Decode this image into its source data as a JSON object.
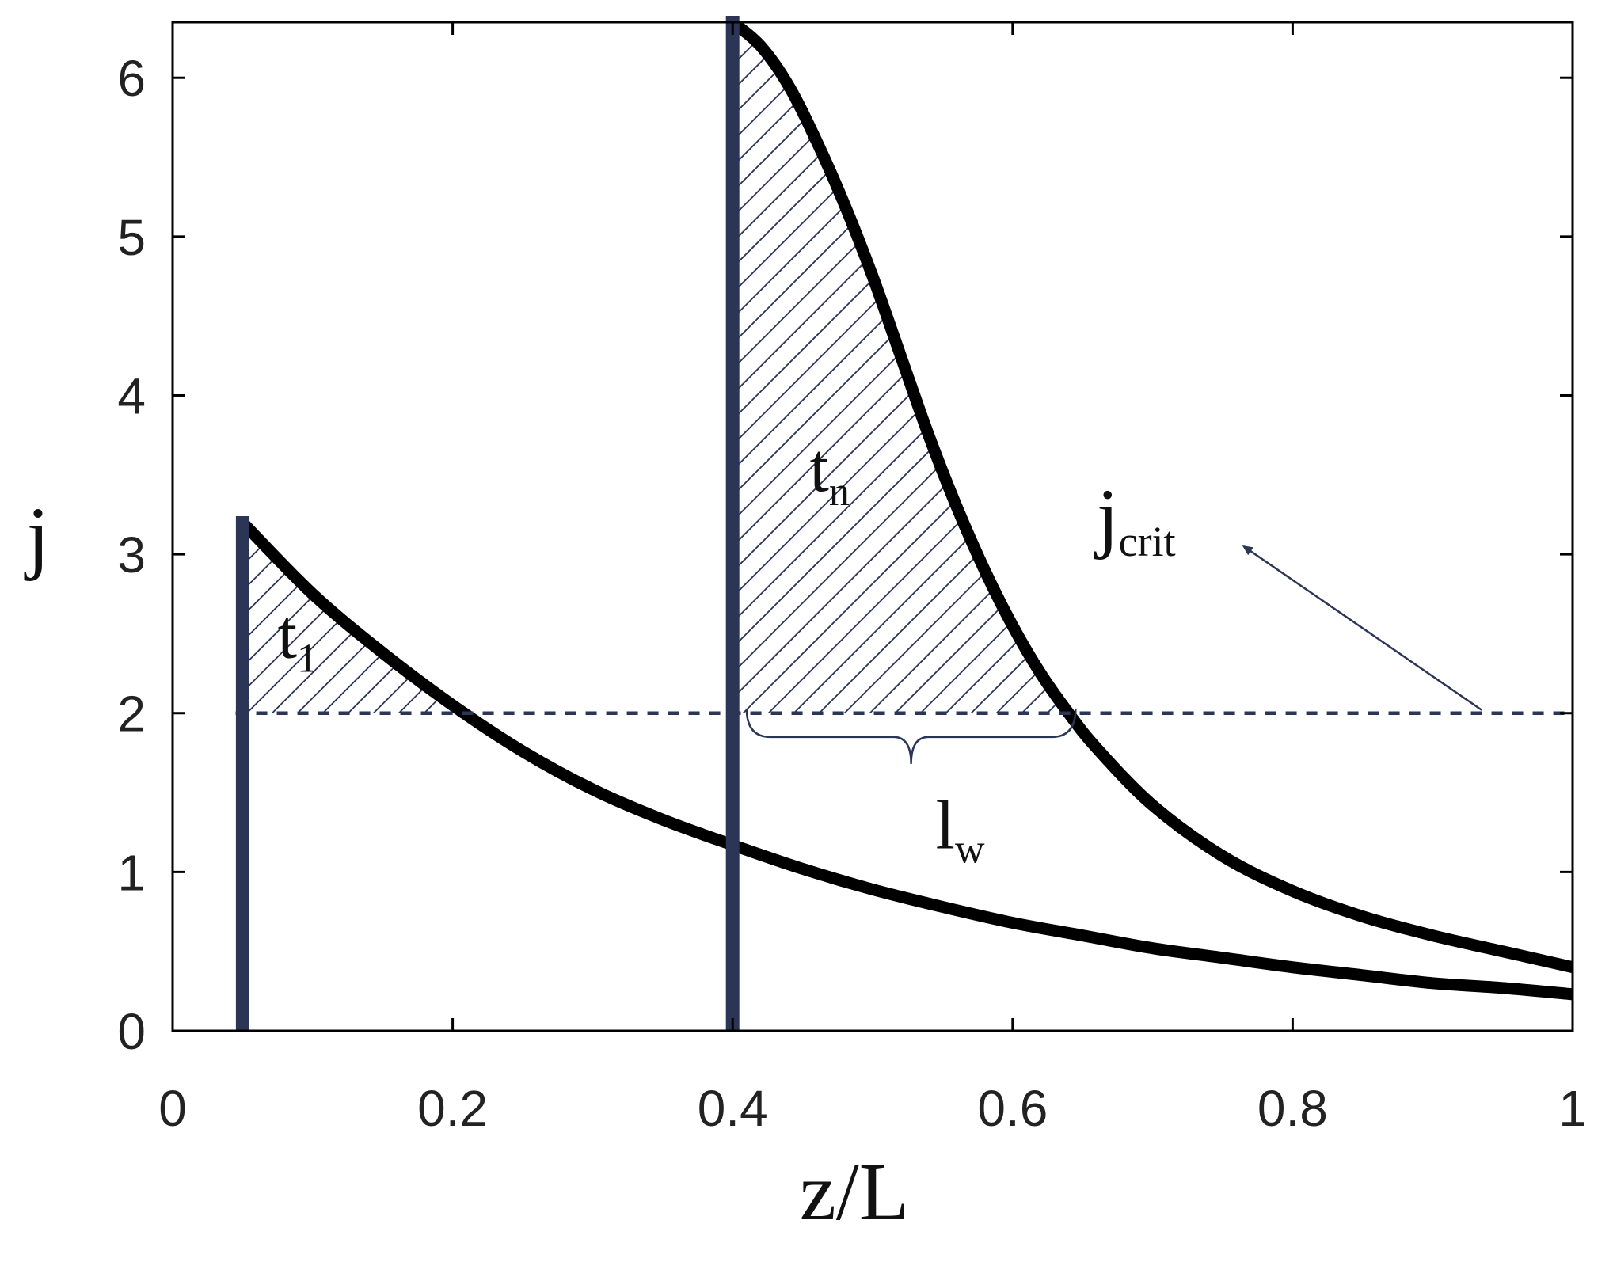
{
  "chart_data": {
    "type": "line",
    "xlabel": "z/L",
    "ylabel": "j",
    "xlim": [
      0,
      1
    ],
    "ylim": [
      0,
      6.35
    ],
    "x_ticks": [
      "0",
      "0.2",
      "0.4",
      "0.6",
      "0.8",
      "1"
    ],
    "y_ticks": [
      "0",
      "1",
      "2",
      "3",
      "4",
      "5",
      "6"
    ],
    "grid": false,
    "colors": {
      "curve": "#000000",
      "bar": "#2b3556",
      "threshold": "#2b3556",
      "hatch": "#2b3556",
      "box": "#000000"
    },
    "series": [
      {
        "x": [
          0.05,
          0.1,
          0.15,
          0.2,
          0.25,
          0.3,
          0.35,
          0.4,
          0.45,
          0.5,
          0.55,
          0.6,
          0.65,
          0.7,
          0.75,
          0.8,
          0.85,
          0.9,
          0.95,
          1.0
        ],
        "y": [
          3.2,
          2.75,
          2.38,
          2.05,
          1.76,
          1.52,
          1.33,
          1.17,
          1.02,
          0.89,
          0.78,
          0.68,
          0.6,
          0.52,
          0.46,
          0.4,
          0.35,
          0.3,
          0.27,
          0.23
        ]
      },
      {
        "x": [
          0.4,
          0.42,
          0.44,
          0.46,
          0.48,
          0.5,
          0.52,
          0.54,
          0.56,
          0.58,
          0.6,
          0.62,
          0.64,
          0.66,
          0.7,
          0.75,
          0.8,
          0.85,
          0.9,
          0.95,
          1.0
        ],
        "y": [
          6.35,
          6.2,
          5.95,
          5.6,
          5.2,
          4.75,
          4.25,
          3.75,
          3.3,
          2.9,
          2.55,
          2.25,
          2.0,
          1.78,
          1.42,
          1.1,
          0.88,
          0.72,
          0.6,
          0.5,
          0.4
        ]
      }
    ],
    "vertical_bars": [
      {
        "x": 0.05,
        "y_top": 3.2
      },
      {
        "x": 0.4,
        "y_top": 6.35
      }
    ],
    "threshold": {
      "y": 2.0,
      "label_main": "j",
      "label_sub": "crit"
    },
    "annotations": [
      {
        "label_main": "t",
        "label_sub": "1",
        "x": 0.075,
        "y": 2.35
      },
      {
        "label_main": "t",
        "label_sub": "n",
        "x": 0.455,
        "y": 3.4
      },
      {
        "label_main": "l",
        "label_sub": "w",
        "x": 0.545,
        "y": 1.15
      }
    ],
    "brace": {
      "x_start": 0.41,
      "x_end": 0.645,
      "y": 1.85
    },
    "arrow": {
      "from_x": 0.935,
      "from_y": 2.02,
      "to_x": 0.765,
      "to_y": 3.05
    }
  }
}
